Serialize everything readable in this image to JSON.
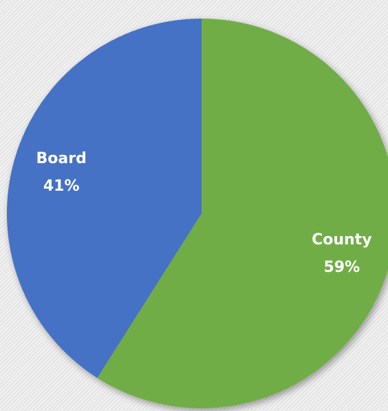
{
  "chart_data": {
    "type": "pie",
    "categories": [
      "County",
      "Board"
    ],
    "values": [
      59,
      41
    ],
    "value_labels": [
      "59%",
      "41%"
    ],
    "colors": [
      "#70ad47",
      "#4472c4"
    ]
  }
}
